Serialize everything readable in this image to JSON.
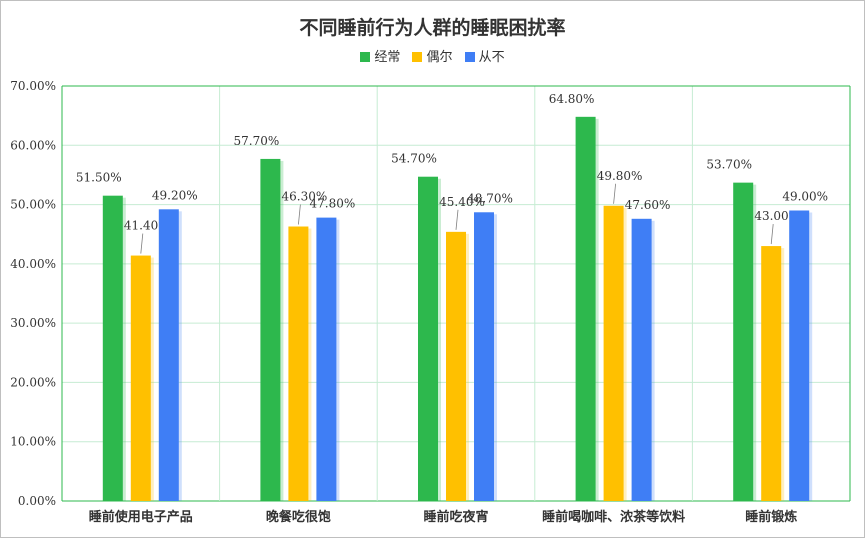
{
  "chart_data": {
    "type": "bar",
    "title": "不同睡前行为人群的睡眠困扰率",
    "categories": [
      "睡前使用电子产品",
      "晚餐吃很饱",
      "睡前吃夜宵",
      "睡前喝咖啡、浓茶等饮料",
      "睡前锻炼"
    ],
    "series": [
      {
        "name": "经常",
        "color": "#2db84d",
        "values": [
          51.5,
          57.7,
          54.7,
          64.8,
          53.7
        ],
        "labels": [
          "51.50%",
          "57.70%",
          "54.70%",
          "64.80%",
          "53.70%"
        ]
      },
      {
        "name": "偶尔",
        "color": "#ffc000",
        "values": [
          41.4,
          46.3,
          45.4,
          49.8,
          43.0
        ],
        "labels": [
          "41.40%",
          "46.30%",
          "45.40%",
          "49.80%",
          "43.00%"
        ]
      },
      {
        "name": "从不",
        "color": "#3f7ef5",
        "values": [
          49.2,
          47.8,
          48.7,
          47.6,
          49.0
        ],
        "labels": [
          "49.20%",
          "47.80%",
          "48.70%",
          "47.60%",
          "49.00%"
        ]
      }
    ],
    "ylim": [
      0,
      70
    ],
    "yticks": [
      "0.00%",
      "10.00%",
      "20.00%",
      "30.00%",
      "40.00%",
      "50.00%",
      "60.00%",
      "70.00%"
    ],
    "grid": true,
    "legend_position": "top",
    "gridline_color": "#c6ecd3",
    "axis_color": "#2db84d"
  }
}
